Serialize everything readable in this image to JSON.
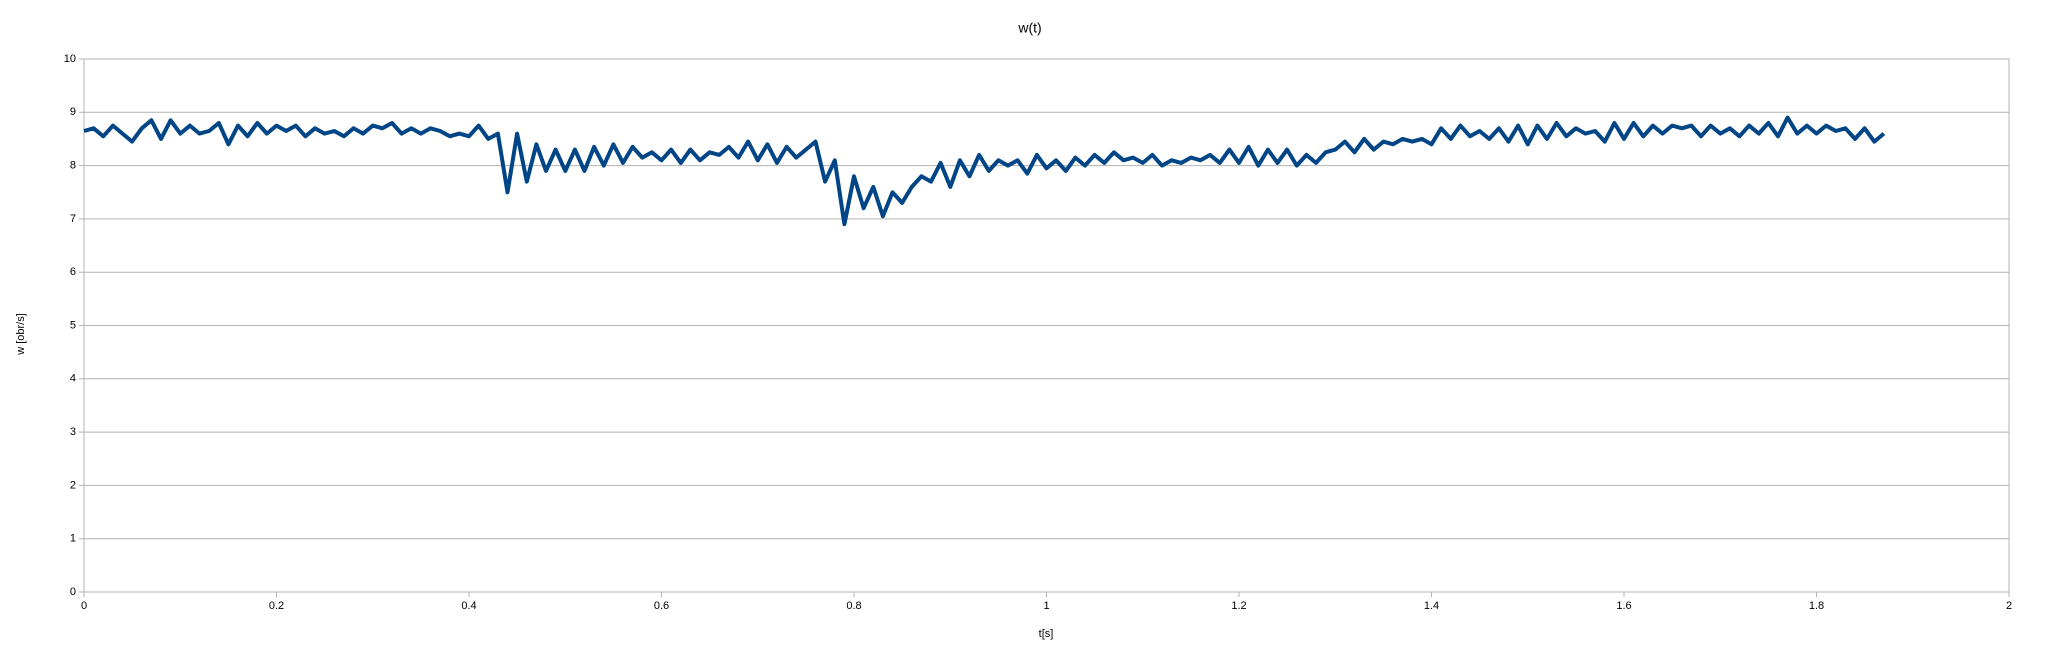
{
  "chart_data": {
    "type": "line",
    "title": "w(t)",
    "x_label": "t[s]",
    "y_label": "w [obr/s]",
    "x": [
      0,
      0.01,
      0.02,
      0.03,
      0.04,
      0.05,
      0.06,
      0.07,
      0.08,
      0.09,
      0.1,
      0.11,
      0.12,
      0.13,
      0.14,
      0.15,
      0.16,
      0.17,
      0.18,
      0.19,
      0.2,
      0.21,
      0.22,
      0.23,
      0.24,
      0.25,
      0.26,
      0.27,
      0.28,
      0.29,
      0.3,
      0.31,
      0.32,
      0.33,
      0.34,
      0.35,
      0.36,
      0.37,
      0.38,
      0.39,
      0.4,
      0.41,
      0.42,
      0.43,
      0.44,
      0.45,
      0.46,
      0.47,
      0.48,
      0.49,
      0.5,
      0.51,
      0.52,
      0.53,
      0.54,
      0.55,
      0.56,
      0.57,
      0.58,
      0.59,
      0.6,
      0.61,
      0.62,
      0.63,
      0.64,
      0.65,
      0.66,
      0.67,
      0.68,
      0.69,
      0.7,
      0.71,
      0.72,
      0.73,
      0.74,
      0.75,
      0.76,
      0.77,
      0.78,
      0.79,
      0.8,
      0.81,
      0.82,
      0.83,
      0.84,
      0.85,
      0.86,
      0.87,
      0.88,
      0.89,
      0.9,
      0.91,
      0.92,
      0.93,
      0.94,
      0.95,
      0.96,
      0.97,
      0.98,
      0.99,
      1,
      1.01,
      1.02,
      1.03,
      1.04,
      1.05,
      1.06,
      1.07,
      1.08,
      1.09,
      1.1,
      1.11,
      1.12,
      1.13,
      1.14,
      1.15,
      1.16,
      1.17,
      1.18,
      1.19,
      1.2,
      1.21,
      1.22,
      1.23,
      1.24,
      1.25,
      1.26,
      1.27,
      1.28,
      1.29,
      1.3,
      1.31,
      1.32,
      1.33,
      1.34,
      1.35,
      1.36,
      1.37,
      1.38,
      1.39,
      1.4,
      1.41,
      1.42,
      1.43,
      1.44,
      1.45,
      1.46,
      1.47,
      1.48,
      1.49,
      1.5,
      1.51,
      1.52,
      1.53,
      1.54,
      1.55,
      1.56,
      1.57,
      1.58,
      1.59,
      1.6,
      1.61,
      1.62,
      1.63,
      1.64,
      1.65,
      1.66,
      1.67,
      1.68,
      1.69,
      1.7,
      1.71,
      1.72,
      1.73,
      1.74,
      1.75,
      1.76,
      1.77,
      1.78,
      1.79,
      1.8,
      1.81,
      1.82,
      1.83,
      1.84,
      1.85,
      1.86,
      1.87
    ],
    "series": [
      {
        "color": "#004586",
        "values": [
          8.65,
          8.7,
          8.55,
          8.75,
          8.6,
          8.45,
          8.7,
          8.85,
          8.5,
          8.85,
          8.6,
          8.75,
          8.6,
          8.65,
          8.8,
          8.4,
          8.75,
          8.55,
          8.8,
          8.6,
          8.75,
          8.65,
          8.75,
          8.55,
          8.7,
          8.6,
          8.65,
          8.55,
          8.7,
          8.6,
          8.75,
          8.7,
          8.8,
          8.6,
          8.7,
          8.6,
          8.7,
          8.65,
          8.55,
          8.6,
          8.55,
          8.75,
          8.5,
          8.6,
          7.5,
          8.6,
          7.7,
          8.4,
          7.9,
          8.3,
          7.9,
          8.3,
          7.9,
          8.35,
          8.0,
          8.4,
          8.05,
          8.35,
          8.15,
          8.25,
          8.1,
          8.3,
          8.05,
          8.3,
          8.1,
          8.25,
          8.2,
          8.35,
          8.15,
          8.45,
          8.1,
          8.4,
          8.05,
          8.35,
          8.15,
          8.3,
          8.45,
          7.7,
          8.1,
          6.9,
          7.8,
          7.2,
          7.6,
          7.05,
          7.5,
          7.3,
          7.6,
          7.8,
          7.7,
          8.05,
          7.6,
          8.1,
          7.8,
          8.2,
          7.9,
          8.1,
          8.0,
          8.1,
          7.85,
          8.2,
          7.95,
          8.1,
          7.9,
          8.15,
          8.0,
          8.2,
          8.05,
          8.25,
          8.1,
          8.15,
          8.05,
          8.2,
          8.0,
          8.1,
          8.05,
          8.15,
          8.1,
          8.2,
          8.05,
          8.3,
          8.05,
          8.35,
          8.0,
          8.3,
          8.05,
          8.3,
          8.0,
          8.2,
          8.05,
          8.25,
          8.3,
          8.45,
          8.25,
          8.5,
          8.3,
          8.45,
          8.4,
          8.5,
          8.45,
          8.5,
          8.4,
          8.7,
          8.5,
          8.75,
          8.55,
          8.65,
          8.5,
          8.7,
          8.45,
          8.75,
          8.4,
          8.75,
          8.5,
          8.8,
          8.55,
          8.7,
          8.6,
          8.65,
          8.45,
          8.8,
          8.5,
          8.8,
          8.55,
          8.75,
          8.6,
          8.75,
          8.7,
          8.75,
          8.55,
          8.75,
          8.6,
          8.7,
          8.55,
          8.75,
          8.6,
          8.8,
          8.55,
          8.9,
          8.6,
          8.75,
          8.6,
          8.75,
          8.65,
          8.7,
          8.5,
          8.7,
          8.45,
          8.6
        ]
      }
    ],
    "xlim": [
      0,
      2
    ],
    "xticks": [
      0,
      0.2,
      0.4,
      0.6,
      0.8,
      1,
      1.2,
      1.4,
      1.6,
      1.8,
      2
    ],
    "ylim": [
      0,
      10
    ],
    "yticks": [
      0,
      1,
      2,
      3,
      4,
      5,
      6,
      7,
      8,
      9,
      10
    ],
    "grid": true
  }
}
